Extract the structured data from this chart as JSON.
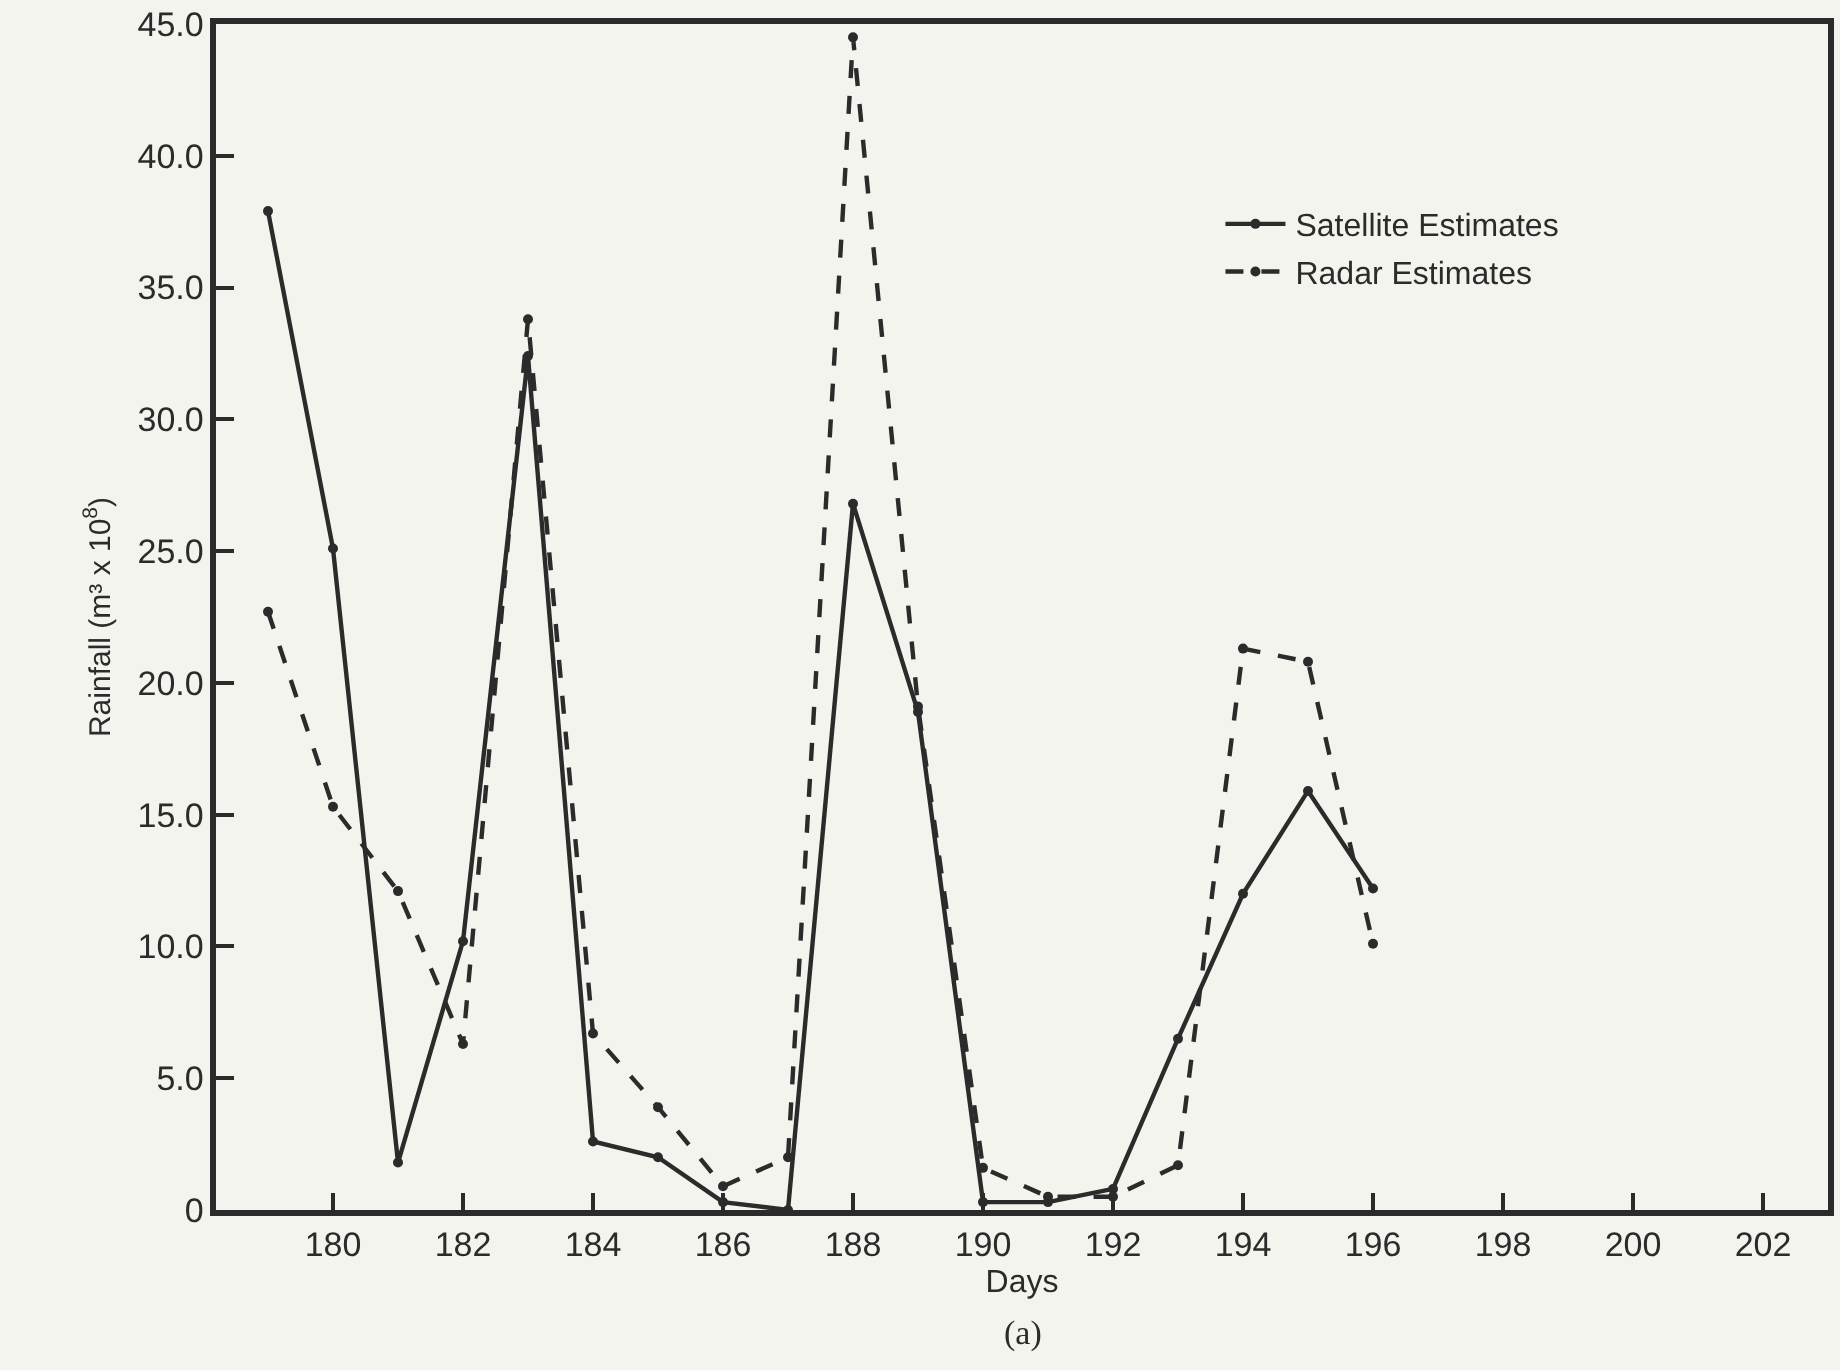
{
  "chart_data": {
    "type": "line",
    "xlabel": "Days",
    "ylabel": "Rainfall (m³ x 10$^{8}$)",
    "annotations": [
      "(a)"
    ],
    "xlim": [
      178.2,
      203
    ],
    "xticks": [
      180,
      182,
      184,
      186,
      188,
      190,
      192,
      194,
      196,
      198,
      200,
      202
    ],
    "ylim": [
      0,
      45
    ],
    "yticks": [
      {
        "value": 0,
        "label": "0"
      },
      {
        "value": 5,
        "label": "5.0"
      },
      {
        "value": 10,
        "label": "10.0"
      },
      {
        "value": 15,
        "label": "15.0"
      },
      {
        "value": 20,
        "label": "20.0"
      },
      {
        "value": 25,
        "label": "25.0"
      },
      {
        "value": 30,
        "label": "30.0"
      },
      {
        "value": 35,
        "label": "35.0"
      },
      {
        "value": 40,
        "label": "40.0"
      },
      {
        "value": 45,
        "label": "45.0"
      }
    ],
    "x": [
      179,
      180,
      181,
      182,
      183,
      184,
      185,
      186,
      187,
      188,
      189,
      190,
      191,
      192,
      193,
      194,
      195,
      196
    ],
    "series": [
      {
        "name": "Satellite Estimates",
        "color": "#2b2b2b",
        "line_style": "solid",
        "values": [
          37.9,
          25.1,
          1.8,
          10.2,
          32.4,
          2.6,
          2.0,
          0.3,
          0,
          26.8,
          18.9,
          0.3,
          0.3,
          0.8,
          6.5,
          12.0,
          15.9,
          12.2
        ]
      },
      {
        "name": "Radar Estimates",
        "color": "#2b2b2b",
        "line_style": "dashed",
        "values": [
          22.7,
          15.3,
          12.1,
          6.3,
          33.8,
          6.7,
          3.9,
          0.9,
          2.0,
          44.5,
          19.1,
          1.6,
          0.5,
          0.5,
          1.7,
          21.3,
          20.8,
          10.1
        ]
      }
    ],
    "marker": "circle",
    "grid": false,
    "legend": "top right"
  }
}
